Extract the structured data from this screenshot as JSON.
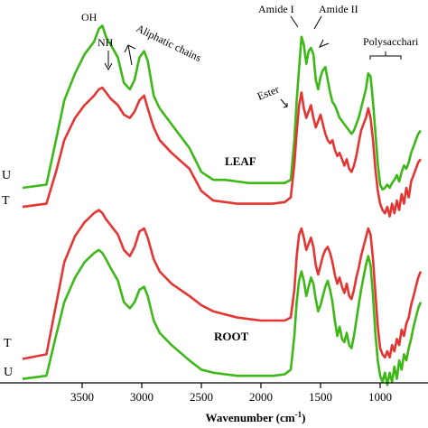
{
  "chart_data": {
    "type": "line",
    "xlabel_main": "Wavenumber (cm",
    "xlabel_sup": "-1",
    "xlabel_close": ")",
    "xlim": [
      4000,
      650
    ],
    "x_reversed": true,
    "x_ticks": [
      3500,
      3000,
      2500,
      2000,
      1500,
      1000
    ],
    "panels": [
      {
        "name": "LEAF",
        "trace_labels": [
          "U",
          "T"
        ],
        "series": [
          {
            "name": "U",
            "color": "#3cb817",
            "x": [
              4000,
              3800,
              3720,
              3650,
              3560,
              3480,
              3400,
              3360,
              3330,
              3300,
              3260,
              3200,
              3150,
              3100,
              3060,
              3020,
              2980,
              2950,
              2900,
              2850,
              2750,
              2600,
              2500,
              2400,
              2300,
              2200,
              2100,
              2000,
              1900,
              1800,
              1750,
              1720,
              1700,
              1680,
              1660,
              1640,
              1620,
              1600,
              1580,
              1560,
              1540,
              1520,
              1500,
              1480,
              1460,
              1440,
              1420,
              1400,
              1380,
              1360,
              1340,
              1320,
              1300,
              1280,
              1260,
              1240,
              1220,
              1200,
              1180,
              1160,
              1140,
              1120,
              1100,
              1080,
              1060,
              1040,
              1020,
              1000,
              980,
              960,
              940,
              920,
              900,
              880,
              860,
              840,
              820,
              800,
              780,
              760,
              740,
              720,
              700,
              680,
              660
            ],
            "y": [
              0.0,
              0.02,
              0.3,
              0.55,
              0.72,
              0.84,
              0.92,
              1.0,
              1.02,
              0.95,
              0.9,
              0.82,
              0.66,
              0.62,
              0.68,
              0.82,
              0.86,
              0.8,
              0.58,
              0.5,
              0.4,
              0.25,
              0.1,
              0.05,
              0.05,
              0.04,
              0.03,
              0.03,
              0.03,
              0.03,
              0.05,
              0.3,
              0.55,
              0.75,
              0.95,
              0.9,
              0.78,
              0.86,
              0.88,
              0.84,
              0.68,
              0.62,
              0.7,
              0.74,
              0.76,
              0.68,
              0.6,
              0.54,
              0.52,
              0.48,
              0.44,
              0.42,
              0.4,
              0.38,
              0.36,
              0.34,
              0.36,
              0.4,
              0.44,
              0.5,
              0.56,
              0.62,
              0.72,
              0.7,
              0.54,
              0.35,
              0.15,
              0.02,
              -0.01,
              0.0,
              0.02,
              0.0,
              0.03,
              0.05,
              0.08,
              0.04,
              0.1,
              0.14,
              0.12,
              0.16,
              0.22,
              0.26,
              0.3,
              0.34,
              0.36
            ]
          },
          {
            "name": "T",
            "color": "#e53533",
            "x": [
              4000,
              3800,
              3720,
              3650,
              3560,
              3480,
              3400,
              3360,
              3330,
              3300,
              3260,
              3200,
              3150,
              3100,
              3060,
              3020,
              2980,
              2950,
              2900,
              2850,
              2750,
              2600,
              2500,
              2400,
              2300,
              2200,
              2100,
              2000,
              1900,
              1800,
              1750,
              1720,
              1700,
              1680,
              1660,
              1640,
              1620,
              1600,
              1580,
              1560,
              1540,
              1520,
              1500,
              1480,
              1460,
              1440,
              1420,
              1400,
              1380,
              1360,
              1340,
              1320,
              1300,
              1280,
              1260,
              1240,
              1220,
              1200,
              1180,
              1160,
              1140,
              1120,
              1100,
              1080,
              1060,
              1040,
              1020,
              1000,
              980,
              960,
              940,
              920,
              900,
              880,
              860,
              840,
              820,
              800,
              780,
              760,
              740,
              720,
              700,
              680,
              660
            ],
            "y": [
              -0.12,
              -0.1,
              0.1,
              0.3,
              0.44,
              0.52,
              0.58,
              0.62,
              0.63,
              0.6,
              0.56,
              0.52,
              0.46,
              0.44,
              0.48,
              0.55,
              0.58,
              0.5,
              0.38,
              0.3,
              0.22,
              0.12,
              -0.02,
              -0.08,
              -0.09,
              -0.1,
              -0.1,
              -0.1,
              -0.1,
              -0.09,
              -0.06,
              0.15,
              0.35,
              0.52,
              0.6,
              0.5,
              0.44,
              0.48,
              0.52,
              0.44,
              0.38,
              0.42,
              0.46,
              0.4,
              0.34,
              0.3,
              0.28,
              0.3,
              0.24,
              0.2,
              0.22,
              0.18,
              0.14,
              0.18,
              0.12,
              0.1,
              0.14,
              0.2,
              0.28,
              0.36,
              0.4,
              0.44,
              0.5,
              0.44,
              0.3,
              0.12,
              -0.02,
              -0.1,
              -0.14,
              -0.16,
              -0.12,
              -0.18,
              -0.1,
              -0.16,
              -0.08,
              -0.14,
              -0.04,
              -0.1,
              0.0,
              -0.06,
              0.04,
              0.08,
              0.12,
              0.16,
              0.18
            ]
          }
        ]
      },
      {
        "name": "ROOT",
        "trace_labels": [
          "T",
          "U"
        ],
        "series": [
          {
            "name": "T",
            "color": "#e53533",
            "x": [
              4000,
              3800,
              3720,
              3650,
              3560,
              3480,
              3400,
              3360,
              3330,
              3300,
              3260,
              3200,
              3150,
              3100,
              3060,
              3020,
              2980,
              2950,
              2900,
              2850,
              2750,
              2600,
              2500,
              2400,
              2300,
              2200,
              2100,
              2000,
              1900,
              1800,
              1750,
              1720,
              1700,
              1680,
              1660,
              1640,
              1620,
              1600,
              1580,
              1560,
              1540,
              1520,
              1500,
              1480,
              1460,
              1440,
              1420,
              1400,
              1380,
              1360,
              1340,
              1320,
              1300,
              1280,
              1260,
              1240,
              1220,
              1200,
              1180,
              1160,
              1140,
              1120,
              1100,
              1080,
              1060,
              1040,
              1020,
              1000,
              980,
              960,
              940,
              920,
              900,
              880,
              860,
              840,
              820,
              800,
              780,
              760,
              740,
              720,
              700,
              680,
              660
            ],
            "y": [
              0.05,
              0.08,
              0.4,
              0.68,
              0.85,
              0.94,
              1.0,
              1.02,
              1.0,
              0.96,
              0.92,
              0.86,
              0.76,
              0.72,
              0.78,
              0.88,
              0.9,
              0.84,
              0.7,
              0.62,
              0.54,
              0.46,
              0.4,
              0.36,
              0.34,
              0.32,
              0.31,
              0.3,
              0.3,
              0.3,
              0.32,
              0.5,
              0.72,
              0.86,
              0.9,
              0.84,
              0.76,
              0.8,
              0.84,
              0.78,
              0.66,
              0.6,
              0.66,
              0.72,
              0.76,
              0.78,
              0.74,
              0.68,
              0.6,
              0.54,
              0.58,
              0.52,
              0.48,
              0.54,
              0.46,
              0.44,
              0.5,
              0.58,
              0.64,
              0.72,
              0.78,
              0.84,
              0.9,
              0.86,
              0.7,
              0.48,
              0.26,
              0.12,
              0.08,
              0.06,
              0.1,
              0.06,
              0.14,
              0.1,
              0.18,
              0.14,
              0.24,
              0.2,
              0.28,
              0.32,
              0.4,
              0.46,
              0.52,
              0.58,
              0.62
            ]
          },
          {
            "name": "U",
            "color": "#3cb817",
            "x": [
              4000,
              3800,
              3720,
              3650,
              3560,
              3480,
              3400,
              3360,
              3330,
              3300,
              3260,
              3200,
              3150,
              3100,
              3060,
              3020,
              2980,
              2950,
              2900,
              2850,
              2750,
              2600,
              2500,
              2400,
              2300,
              2200,
              2100,
              2000,
              1900,
              1800,
              1750,
              1720,
              1700,
              1680,
              1660,
              1640,
              1620,
              1600,
              1580,
              1560,
              1540,
              1520,
              1500,
              1480,
              1460,
              1440,
              1420,
              1400,
              1380,
              1360,
              1340,
              1320,
              1300,
              1280,
              1260,
              1240,
              1220,
              1200,
              1180,
              1160,
              1140,
              1120,
              1100,
              1080,
              1060,
              1040,
              1020,
              1000,
              980,
              960,
              940,
              920,
              900,
              880,
              860,
              840,
              820,
              800,
              780,
              760,
              740,
              720,
              700,
              680,
              660
            ],
            "y": [
              -0.08,
              -0.06,
              0.2,
              0.42,
              0.58,
              0.68,
              0.74,
              0.76,
              0.74,
              0.7,
              0.64,
              0.56,
              0.42,
              0.38,
              0.42,
              0.5,
              0.52,
              0.46,
              0.3,
              0.22,
              0.14,
              0.04,
              -0.02,
              -0.04,
              -0.05,
              -0.06,
              -0.06,
              -0.06,
              -0.06,
              -0.05,
              -0.02,
              0.2,
              0.42,
              0.56,
              0.62,
              0.56,
              0.46,
              0.52,
              0.58,
              0.54,
              0.44,
              0.36,
              0.4,
              0.46,
              0.52,
              0.56,
              0.5,
              0.42,
              0.3,
              0.2,
              0.26,
              0.18,
              0.16,
              0.22,
              0.14,
              0.12,
              0.2,
              0.3,
              0.4,
              0.5,
              0.58,
              0.66,
              0.72,
              0.66,
              0.46,
              0.22,
              0.04,
              -0.06,
              -0.1,
              -0.04,
              -0.12,
              -0.04,
              -0.1,
              0.0,
              -0.08,
              0.04,
              -0.02,
              0.08,
              0.04,
              0.12,
              0.18,
              0.26,
              0.32,
              0.38,
              0.42
            ]
          }
        ]
      }
    ],
    "annotations": {
      "oh": "OH",
      "nh": "NH",
      "aliphatic": "Aliphatic chains",
      "amide1": "Amide I",
      "amide2": "Amide II",
      "ester": "Ester",
      "poly": "Polysacchari"
    }
  }
}
